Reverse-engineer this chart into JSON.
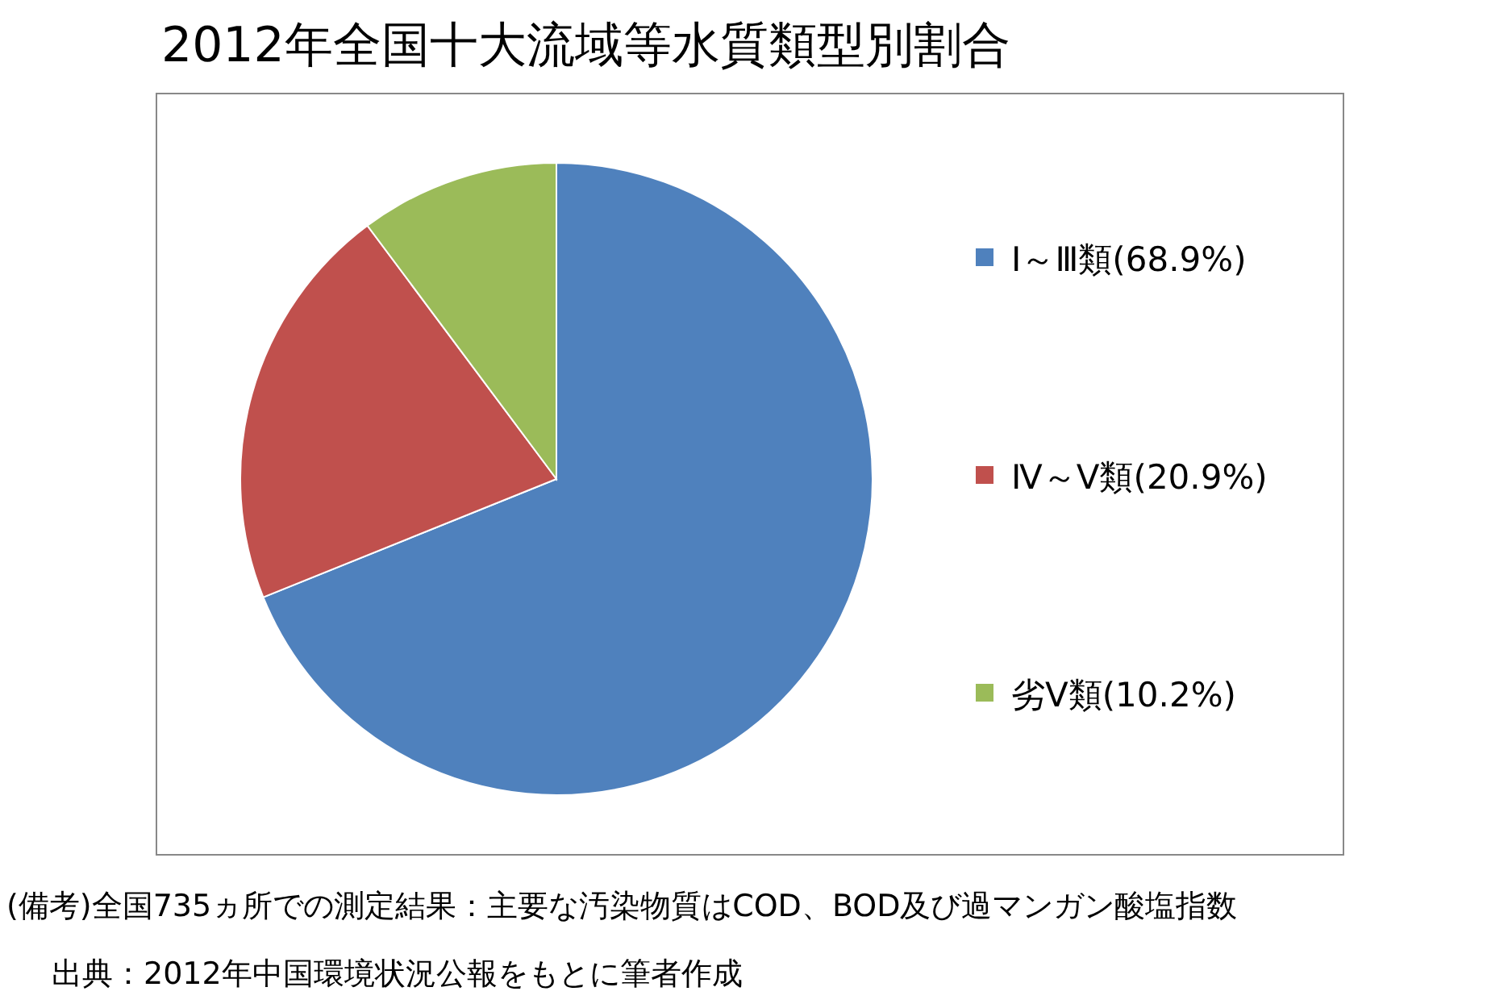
{
  "chart_data": {
    "type": "pie",
    "title": "2012年全国十大流域等水質類型別割合",
    "categories": [
      "Ⅰ～Ⅲ類(68.9%)",
      "Ⅳ～Ⅴ類(20.9%)",
      "劣Ⅴ類(10.2%)"
    ],
    "values": [
      68.9,
      20.9,
      10.2
    ],
    "colors": [
      "#4f81bd",
      "#c0504d",
      "#9bbb59"
    ],
    "legend": "right",
    "annotations": [
      "(備考)全国735ヵ所での測定結果：主要な汚染物質はCOD、BOD及び過マンガン酸塩指数",
      "出典：2012年中国環境状況公報をもとに筆者作成"
    ]
  }
}
